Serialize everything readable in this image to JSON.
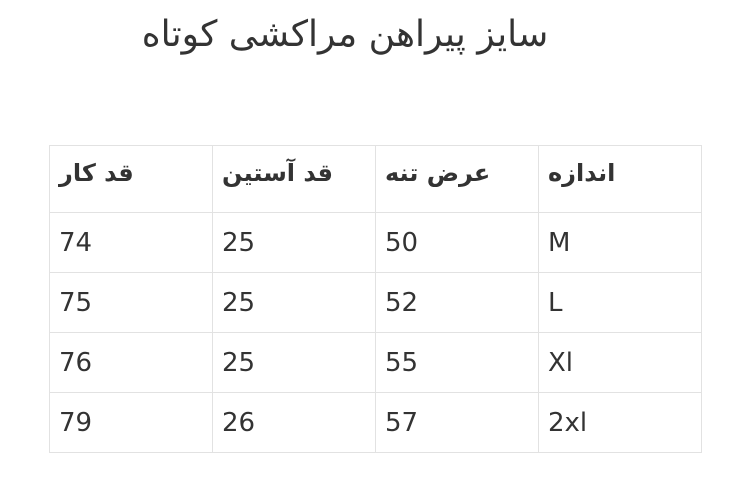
{
  "title": "سایز پیراهن مراکشی کوتاه",
  "table": {
    "headers": [
      "قد کار",
      "قد آستین",
      "عرض تنه",
      "اندازه"
    ],
    "rows": [
      [
        "74",
        "25",
        "50",
        "M"
      ],
      [
        "75",
        "25",
        "52",
        "L"
      ],
      [
        "76",
        "25",
        "55",
        "Xl"
      ],
      [
        "79",
        "26",
        "57",
        "2xl"
      ]
    ]
  }
}
